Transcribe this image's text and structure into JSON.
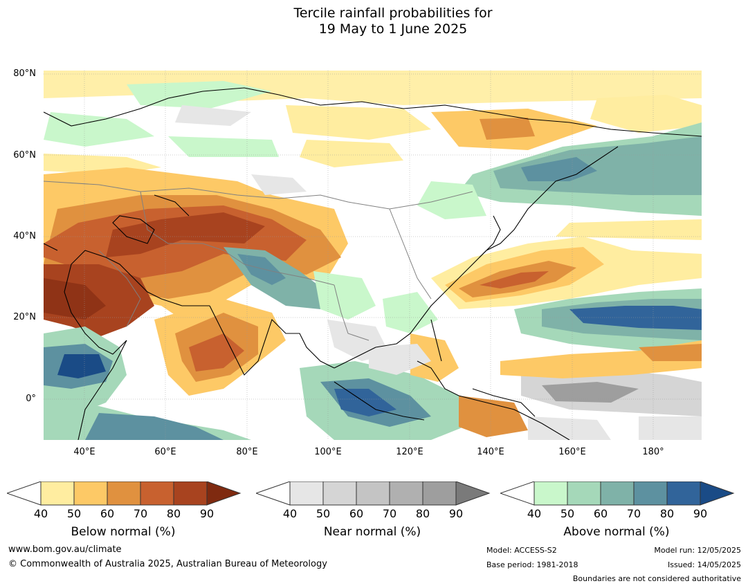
{
  "title": {
    "line1": "Tercile rainfall probabilities for",
    "line2": "19 May to 1 June 2025"
  },
  "map": {
    "lat_labels": [
      "80°N",
      "60°N",
      "40°N",
      "20°N",
      "0°"
    ],
    "lon_labels": [
      "40°E",
      "60°E",
      "80°E",
      "100°E",
      "120°E",
      "140°E",
      "160°E",
      "180°"
    ],
    "palette": {
      "below": [
        "#ffeda0",
        "#fdc966",
        "#e0913f",
        "#c8612f",
        "#a8431f",
        "#7f2a10"
      ],
      "near": [
        "#e6e6e6",
        "#d5d5d5",
        "#c4c4c4",
        "#b0b0b0",
        "#9e9e9e",
        "#7a7a7a"
      ],
      "above": [
        "#c9f7cb",
        "#a5d8b9",
        "#7fb2a8",
        "#5d91a0",
        "#31649a",
        "#1a4b86"
      ],
      "coast": "#000000",
      "border": "#808080"
    }
  },
  "colorbars": {
    "ticks": [
      "40",
      "50",
      "60",
      "70",
      "80",
      "90"
    ],
    "below_label": "Below normal (%)",
    "near_label": "Near normal (%)",
    "above_label": "Above normal (%)"
  },
  "footer": {
    "website": "www.bom.gov.au/climate",
    "copyright": "© Commonwealth of Australia 2025, Australian Bureau of Meteorology",
    "model": "Model: ACCESS-S2",
    "base_period": "Base period: 1981-2018",
    "model_run": "Model run: 12/05/2025",
    "issued": "Issued: 14/05/2025",
    "disclaimer": "Boundaries are not considered authoritative"
  }
}
